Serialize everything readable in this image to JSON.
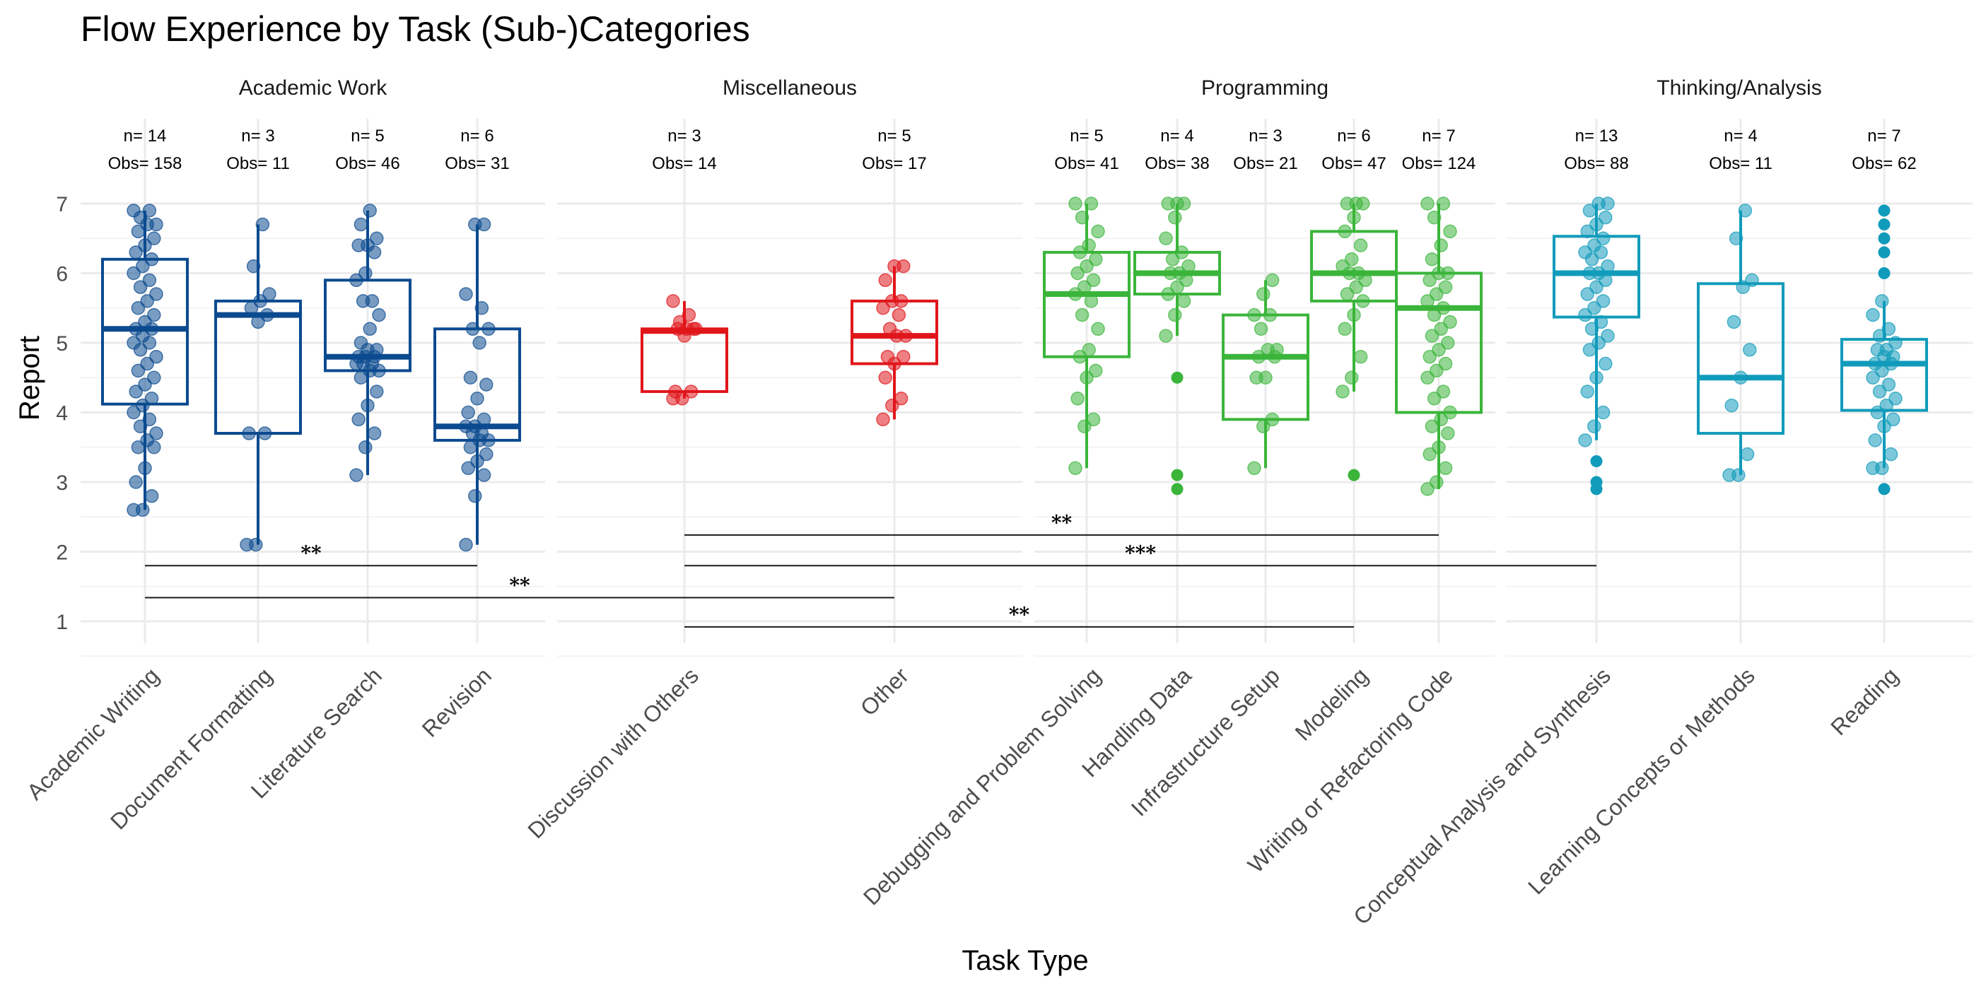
{
  "chart_data": {
    "type": "boxplot",
    "title": "Flow Experience by Task (Sub-)Categories",
    "xlabel": "Task Type",
    "ylabel": "Report",
    "ylim": [
      0.75,
      7.25
    ],
    "yticks": [
      1,
      2,
      3,
      4,
      5,
      6,
      7
    ],
    "grid": true,
    "colors": {
      "Academic Work": "#0b4a8f",
      "Miscellaneous": "#e0161b",
      "Programming": "#3ab53a",
      "Thinking/Analysis": "#119bbb"
    },
    "facets": [
      {
        "name": "Academic Work",
        "categories": [
          {
            "label": "Academic Writing",
            "n": "n= 14",
            "obs": "Obs= 158",
            "q1": 4.12,
            "median": 5.2,
            "q3": 6.2,
            "whisker_low": 2.6,
            "whisker_high": 6.9,
            "outliers": [],
            "points": [
              2.6,
              2.6,
              2.8,
              3.0,
              3.2,
              3.5,
              3.5,
              3.6,
              3.7,
              3.8,
              3.9,
              4.0,
              4.1,
              4.2,
              4.3,
              4.4,
              4.5,
              4.6,
              4.7,
              4.8,
              4.9,
              5.0,
              5.0,
              5.1,
              5.2,
              5.2,
              5.3,
              5.4,
              5.5,
              5.6,
              5.7,
              5.8,
              5.9,
              6.0,
              6.1,
              6.2,
              6.3,
              6.4,
              6.5,
              6.6,
              6.7,
              6.7,
              6.8,
              6.9,
              6.9
            ]
          },
          {
            "label": "Document Formatting",
            "n": "n= 3",
            "obs": "Obs= 11",
            "q1": 3.7,
            "median": 5.4,
            "q3": 5.6,
            "whisker_low": 2.1,
            "whisker_high": 6.7,
            "outliers": [],
            "points": [
              2.1,
              2.1,
              3.7,
              3.7,
              5.3,
              5.4,
              5.5,
              5.6,
              5.7,
              6.1,
              6.7
            ]
          },
          {
            "label": "Literature Search",
            "n": "n= 5",
            "obs": "Obs= 46",
            "q1": 4.6,
            "median": 4.8,
            "q3": 5.9,
            "whisker_low": 3.1,
            "whisker_high": 6.9,
            "outliers": [],
            "points": [
              3.1,
              3.5,
              3.7,
              3.9,
              4.1,
              4.3,
              4.5,
              4.6,
              4.6,
              4.7,
              4.7,
              4.7,
              4.8,
              4.8,
              4.8,
              4.9,
              4.9,
              5.0,
              5.2,
              5.4,
              5.6,
              5.6,
              5.9,
              6.0,
              6.3,
              6.4,
              6.4,
              6.5,
              6.7,
              6.9
            ]
          },
          {
            "label": "Revision",
            "n": "n= 6",
            "obs": "Obs= 31",
            "q1": 3.6,
            "median": 3.8,
            "q3": 5.2,
            "whisker_low": 2.1,
            "whisker_high": 6.7,
            "outliers": [],
            "points": [
              2.1,
              2.8,
              3.1,
              3.2,
              3.3,
              3.4,
              3.5,
              3.6,
              3.6,
              3.7,
              3.7,
              3.8,
              3.8,
              3.9,
              4.0,
              4.2,
              4.4,
              4.5,
              5.0,
              5.2,
              5.2,
              5.5,
              5.7,
              6.7,
              6.7
            ]
          }
        ]
      },
      {
        "name": "Miscellaneous",
        "categories": [
          {
            "label": "Discussion with Others",
            "n": "n= 3",
            "obs": "Obs= 14",
            "q1": 4.3,
            "median": 5.17,
            "q3": 5.2,
            "whisker_low": 4.2,
            "whisker_high": 5.6,
            "outliers": [],
            "points": [
              4.2,
              4.2,
              4.3,
              4.3,
              5.1,
              5.2,
              5.2,
              5.2,
              5.2,
              5.3,
              5.4,
              5.6
            ]
          },
          {
            "label": "Other",
            "n": "n= 5",
            "obs": "Obs= 17",
            "q1": 4.7,
            "median": 5.1,
            "q3": 5.6,
            "whisker_low": 3.9,
            "whisker_high": 6.1,
            "outliers": [],
            "points": [
              3.9,
              4.1,
              4.2,
              4.5,
              4.7,
              4.8,
              4.8,
              5.1,
              5.1,
              5.2,
              5.4,
              5.5,
              5.6,
              5.6,
              5.9,
              6.1,
              6.1
            ]
          }
        ]
      },
      {
        "name": "Programming",
        "categories": [
          {
            "label": "Debugging and Problem Solving",
            "n": "n= 5",
            "obs": "Obs= 41",
            "q1": 4.8,
            "median": 5.7,
            "q3": 6.3,
            "whisker_low": 3.2,
            "whisker_high": 7.0,
            "outliers": [],
            "points": [
              3.2,
              3.8,
              3.9,
              4.2,
              4.5,
              4.6,
              4.8,
              4.9,
              5.2,
              5.4,
              5.6,
              5.7,
              5.8,
              5.9,
              6.0,
              6.1,
              6.2,
              6.3,
              6.4,
              6.6,
              6.8,
              7.0,
              7.0
            ]
          },
          {
            "label": "Handling Data",
            "n": "n= 4",
            "obs": "Obs= 38",
            "q1": 5.7,
            "median": 6.0,
            "q3": 6.3,
            "whisker_low": 5.1,
            "whisker_high": 7.0,
            "outliers": [
              4.5,
              3.1,
              2.9
            ],
            "points": [
              5.1,
              5.4,
              5.6,
              5.7,
              5.8,
              5.9,
              6.0,
              6.0,
              6.1,
              6.2,
              6.3,
              6.5,
              6.8,
              7.0,
              7.0,
              7.0
            ]
          },
          {
            "label": "Infrastructure Setup",
            "n": "n= 3",
            "obs": "Obs= 21",
            "q1": 3.9,
            "median": 4.8,
            "q3": 5.4,
            "whisker_low": 3.2,
            "whisker_high": 5.9,
            "outliers": [],
            "points": [
              3.2,
              3.8,
              3.9,
              4.5,
              4.5,
              4.8,
              4.8,
              4.9,
              4.9,
              5.2,
              5.4,
              5.4,
              5.7,
              5.9
            ]
          },
          {
            "label": "Modeling",
            "n": "n= 6",
            "obs": "Obs= 47",
            "q1": 5.6,
            "median": 6.0,
            "q3": 6.6,
            "whisker_low": 4.3,
            "whisker_high": 7.0,
            "outliers": [
              3.1
            ],
            "points": [
              4.3,
              4.5,
              4.8,
              5.2,
              5.4,
              5.6,
              5.7,
              5.8,
              5.9,
              6.0,
              6.0,
              6.1,
              6.2,
              6.4,
              6.6,
              6.8,
              7.0,
              7.0,
              7.0
            ]
          },
          {
            "label": "Writing or Refactoring Code",
            "n": "n= 7",
            "obs": "Obs= 124",
            "q1": 4.0,
            "median": 5.5,
            "q3": 6.0,
            "whisker_low": 2.9,
            "whisker_high": 7.0,
            "outliers": [],
            "points": [
              2.9,
              3.0,
              3.2,
              3.4,
              3.5,
              3.7,
              3.8,
              3.9,
              4.0,
              4.2,
              4.3,
              4.5,
              4.6,
              4.7,
              4.8,
              4.9,
              5.0,
              5.1,
              5.2,
              5.3,
              5.4,
              5.5,
              5.6,
              5.7,
              5.8,
              5.9,
              6.0,
              6.0,
              6.2,
              6.4,
              6.6,
              6.8,
              7.0,
              7.0
            ]
          }
        ]
      },
      {
        "name": "Thinking/Analysis",
        "categories": [
          {
            "label": "Conceptual Analysis and Synthesis",
            "n": "n= 13",
            "obs": "Obs= 88",
            "q1": 5.37,
            "median": 6.0,
            "q3": 6.53,
            "whisker_low": 3.6,
            "whisker_high": 7.0,
            "outliers": [
              3.3,
              3.0,
              2.9
            ],
            "points": [
              3.6,
              3.8,
              4.0,
              4.3,
              4.5,
              4.7,
              4.9,
              5.0,
              5.1,
              5.2,
              5.3,
              5.4,
              5.5,
              5.6,
              5.7,
              5.8,
              5.9,
              6.0,
              6.0,
              6.1,
              6.2,
              6.3,
              6.3,
              6.4,
              6.5,
              6.6,
              6.7,
              6.8,
              6.9,
              7.0,
              7.0
            ]
          },
          {
            "label": "Learning Concepts or Methods",
            "n": "n= 4",
            "obs": "Obs= 11",
            "q1": 3.7,
            "median": 4.5,
            "q3": 5.85,
            "whisker_low": 3.1,
            "whisker_high": 6.9,
            "outliers": [],
            "points": [
              3.1,
              3.1,
              3.4,
              4.1,
              4.5,
              4.9,
              5.3,
              5.8,
              5.9,
              6.5,
              6.9
            ]
          },
          {
            "label": "Reading",
            "n": "n= 7",
            "obs": "Obs= 62",
            "q1": 4.03,
            "median": 4.7,
            "q3": 5.05,
            "whisker_low": 3.2,
            "whisker_high": 5.6,
            "outliers": [
              6.0,
              6.3,
              6.5,
              6.7,
              6.9,
              2.9
            ],
            "points": [
              3.2,
              3.2,
              3.4,
              3.6,
              3.8,
              3.9,
              4.0,
              4.1,
              4.2,
              4.3,
              4.4,
              4.5,
              4.6,
              4.7,
              4.7,
              4.8,
              4.8,
              4.9,
              4.9,
              5.0,
              5.1,
              5.2,
              5.4,
              5.6
            ]
          }
        ]
      }
    ],
    "significance": [
      {
        "from": "Academic Writing",
        "to": "Revision",
        "y": 1.8,
        "label": "**"
      },
      {
        "from": "Academic Writing",
        "to": "Other",
        "y": 1.34,
        "label": "**"
      },
      {
        "from": "Discussion with Others",
        "to": "Writing or Refactoring Code",
        "y": 2.24,
        "label": "**"
      },
      {
        "from": "Discussion with Others",
        "to": "Conceptual Analysis and Synthesis",
        "y": 1.8,
        "label": "***"
      },
      {
        "from": "Discussion with Others",
        "to": "Modeling",
        "y": 0.92,
        "label": "**"
      }
    ]
  }
}
